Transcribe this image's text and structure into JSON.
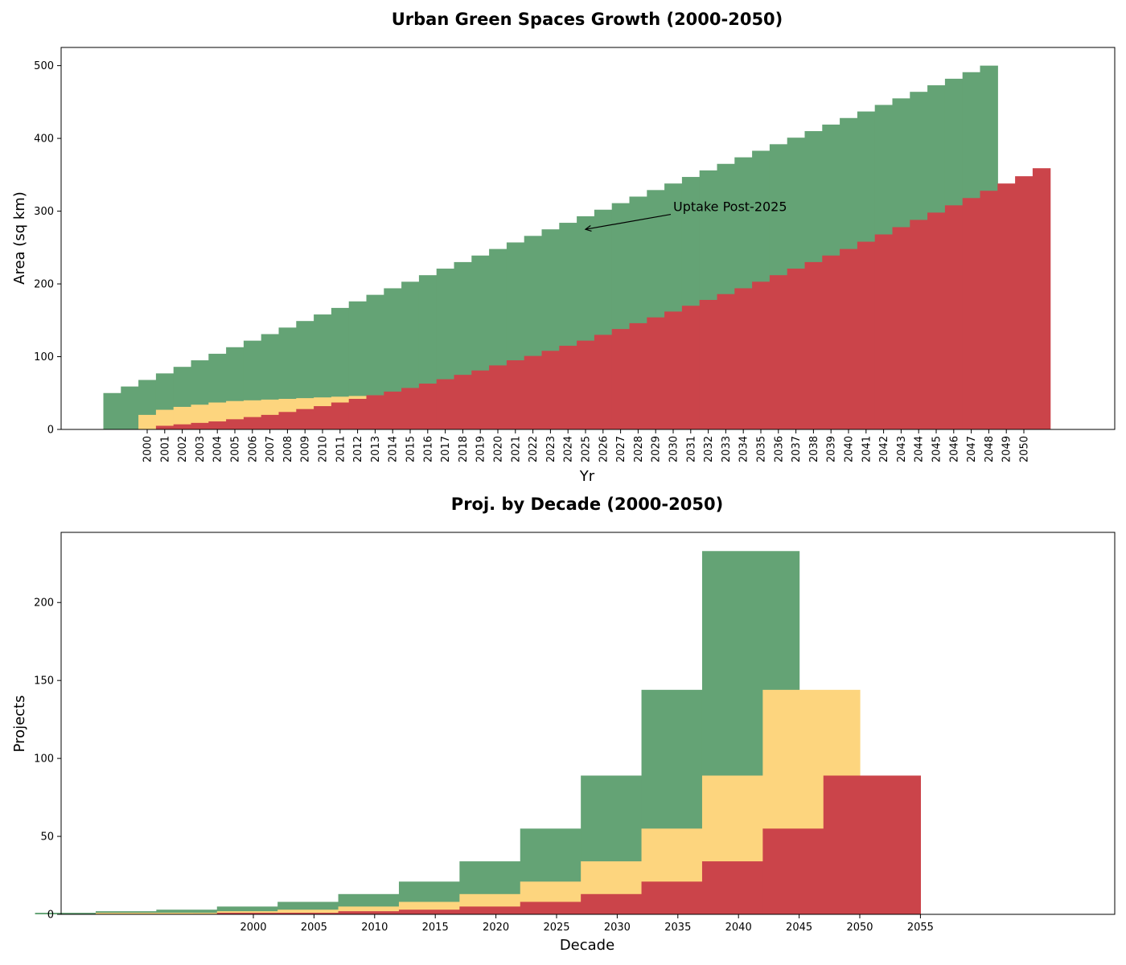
{
  "chart_data": [
    {
      "type": "bar",
      "title": "Urban Green Spaces Growth (2000-2050)",
      "xlabel": "Yr",
      "ylabel": "Area (sq km)",
      "ylim": [
        0,
        525
      ],
      "yticks": [
        0,
        100,
        200,
        300,
        400,
        500
      ],
      "grid": false,
      "colors": {
        "green": "#64A375",
        "yellow": "#FDD57E",
        "red": "#CB444A"
      },
      "x_tick_labels": [
        "2000",
        "2001",
        "2002",
        "2003",
        "2004",
        "2005",
        "2006",
        "2007",
        "2008",
        "2009",
        "2010",
        "2011",
        "2012",
        "2013",
        "2014",
        "2015",
        "2016",
        "2017",
        "2018",
        "2019",
        "2020",
        "2021",
        "2022",
        "2023",
        "2024",
        "2025",
        "2026",
        "2027",
        "2028",
        "2029",
        "2030",
        "2031",
        "2032",
        "2033",
        "2034",
        "2035",
        "2036",
        "2037",
        "2038",
        "2039",
        "2040",
        "2041",
        "2042",
        "2043",
        "2044",
        "2045",
        "2046",
        "2047",
        "2048",
        "2049",
        "2050"
      ],
      "series": [
        {
          "color": "green",
          "x_start": 1998,
          "values": [
            50,
            59,
            68,
            77,
            86,
            95,
            104,
            113,
            122,
            131,
            140,
            149,
            158,
            167,
            176,
            185,
            194,
            203,
            212,
            221,
            230,
            239,
            248,
            257,
            266,
            275,
            284,
            293,
            302,
            311,
            320,
            329,
            338,
            347,
            356,
            365,
            374,
            383,
            392,
            401,
            410,
            419,
            428,
            437,
            446,
            455,
            464,
            473,
            482,
            491,
            500
          ]
        },
        {
          "color": "yellow",
          "x_start": 2000,
          "values": [
            20,
            27,
            31,
            34,
            37,
            39,
            40,
            41,
            42,
            43,
            44,
            45,
            46,
            47
          ]
        },
        {
          "color": "red",
          "x_start": 2001,
          "values": [
            5,
            7,
            9,
            11,
            14,
            17,
            20,
            24,
            28,
            32,
            37,
            42,
            47,
            52,
            57,
            63,
            69,
            75,
            81,
            88,
            95,
            101,
            108,
            115,
            122,
            130,
            138,
            146,
            154,
            162,
            170,
            178,
            186,
            194,
            203,
            212,
            221,
            230,
            239,
            248,
            258,
            268,
            278,
            288,
            298,
            308,
            318,
            328,
            338,
            348,
            359
          ]
        }
      ],
      "annotations": [
        {
          "text": "Uptake Post-2025",
          "text_x": 2030,
          "text_y": 300,
          "arrow_x": 2025,
          "arrow_y": 275
        }
      ]
    },
    {
      "type": "bar",
      "title": "Proj. by Decade (2000-2050)",
      "xlabel": "Decade",
      "ylabel": "Projects",
      "ylim": [
        0,
        245
      ],
      "yticks": [
        0,
        50,
        100,
        150,
        200
      ],
      "x_ticks": [
        2000,
        2005,
        2010,
        2015,
        2020,
        2025,
        2030,
        2035,
        2040,
        2045,
        2050,
        2055
      ],
      "grid": false,
      "colors": {
        "green": "#64A375",
        "yellow": "#FDD57E",
        "red": "#CB444A"
      },
      "series": [
        {
          "color": "green",
          "x_start": 1986,
          "step": 5,
          "values": [
            1,
            2,
            3,
            5,
            8,
            13,
            21,
            34,
            55,
            89,
            144,
            233
          ]
        },
        {
          "color": "yellow",
          "x_start": 1991,
          "step": 5,
          "values": [
            1,
            1,
            2,
            3,
            5,
            8,
            13,
            21,
            34,
            55,
            89,
            144
          ]
        },
        {
          "color": "red",
          "x_start": 1996,
          "step": 5,
          "values": [
            0,
            1,
            1,
            2,
            3,
            5,
            8,
            13,
            21,
            34,
            55,
            89
          ]
        }
      ]
    }
  ]
}
